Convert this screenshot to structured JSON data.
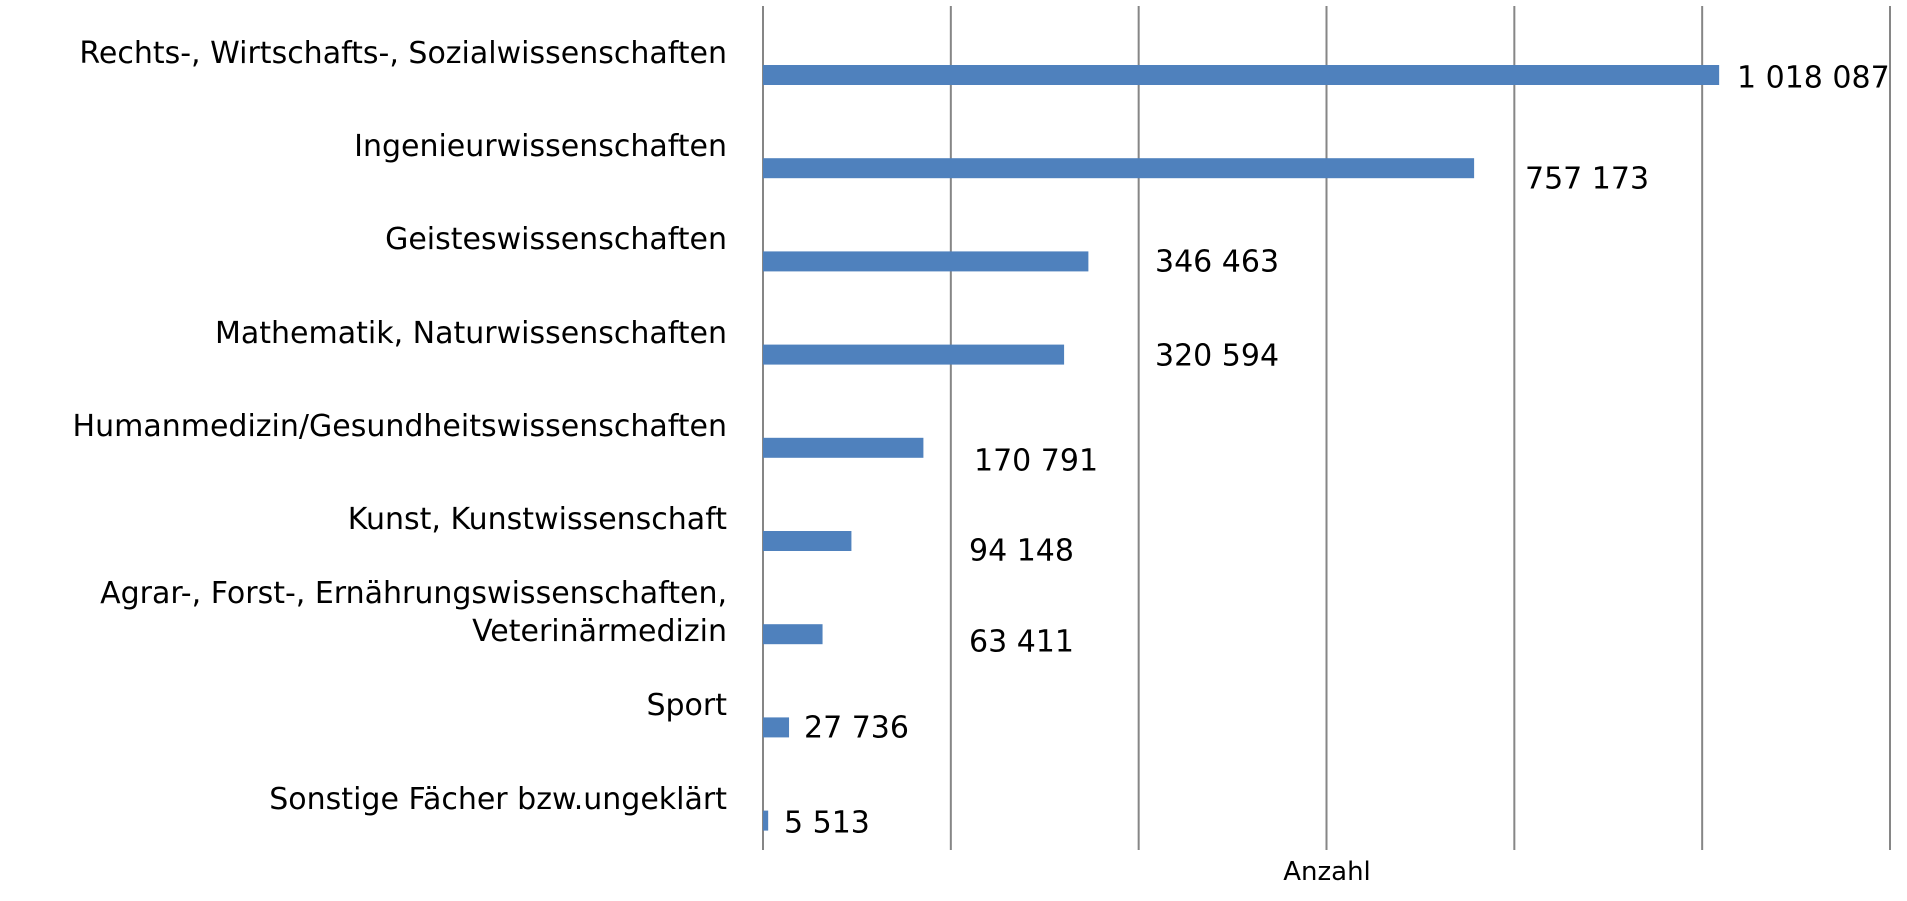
{
  "chart_data": {
    "type": "bar",
    "orientation": "horizontal",
    "x_label": "Anzahl",
    "categories": [
      "Rechts-, Wirtschafts-, Sozialwissenschaften",
      "Ingenieurwissenschaften",
      "Geisteswissenschaften",
      "Mathematik, Naturwissenschaften",
      "Humanmedizin/Gesundheitswissenschaften",
      "Kunst, Kunstwissenschaft",
      "Agrar-, Forst-, Ernährungswissenschaften,\nVeterinärmedizin",
      "Sport",
      "Sonstige Fächer bzw.ungeklärt"
    ],
    "values": [
      1018087,
      757173,
      346463,
      320594,
      170791,
      94148,
      63411,
      27736,
      5513
    ],
    "value_labels": [
      "1 018 087",
      "757 173",
      "346 463",
      "320 594",
      "170 791",
      "94 148",
      "63 411",
      "27 736",
      "5 513"
    ],
    "color": "#4f81bd",
    "xlim": [
      0,
      1200000
    ],
    "xticks": [
      0,
      200000,
      400000,
      600000,
      800000,
      1000000,
      1200000
    ],
    "grid": true,
    "tick_labels": false
  }
}
